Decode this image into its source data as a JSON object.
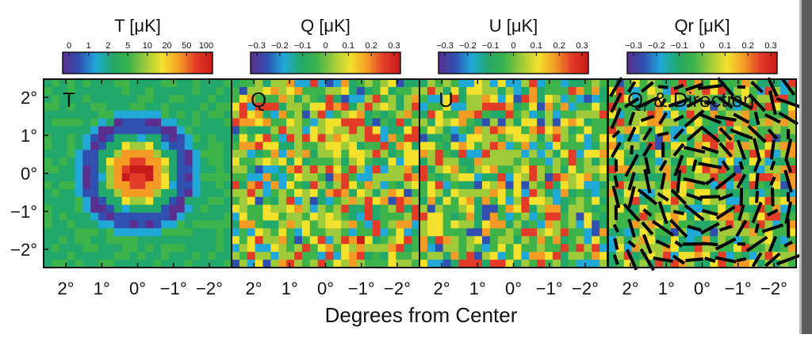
{
  "chart_data": {
    "type": "heatmap",
    "xlabel": "Degrees from Center",
    "x_ticks": [
      "2°",
      "1°",
      "0°",
      "−1°",
      "−2°"
    ],
    "y_ticks": [
      "2°",
      "1°",
      "0°",
      "−1°",
      "−2°"
    ],
    "colormap": [
      "#5a2f8f",
      "#3050b0",
      "#1fa8d8",
      "#22a86a",
      "#3db34a",
      "#9fcb3a",
      "#f4e12c",
      "#f39b25",
      "#e23b28",
      "#c81a1a"
    ],
    "panels": [
      {
        "name": "T",
        "colorbar_title": "T [μK]",
        "colorbar_ticks": [
          "0",
          "1",
          "2",
          "5",
          "10",
          "20",
          "50",
          "100"
        ],
        "label": "T",
        "label_sub": "",
        "label_suffix": "",
        "pattern": "rings",
        "seed": 7
      },
      {
        "name": "Q",
        "colorbar_title": "Q [μK]",
        "colorbar_ticks": [
          "−0.3",
          "−0.2",
          "−0.1",
          "0",
          "0.1",
          "0.2",
          "0.3"
        ],
        "label": "Q",
        "label_sub": "",
        "label_suffix": "",
        "pattern": "noise",
        "seed": 11
      },
      {
        "name": "U",
        "colorbar_title": "U [μK]",
        "colorbar_ticks": [
          "−0.3",
          "−0.2",
          "−0.1",
          "0",
          "0.1",
          "0.2",
          "0.3"
        ],
        "label": "U",
        "label_sub": "",
        "label_suffix": "",
        "pattern": "noise",
        "seed": 23
      },
      {
        "name": "Qr",
        "colorbar_title": "Qr [μK]",
        "colorbar_ticks": [
          "−0.3",
          "−0.2",
          "−0.1",
          "0",
          "0.1",
          "0.2",
          "0.3"
        ],
        "label": "Q",
        "label_sub": "r",
        "label_suffix": " & Direction",
        "pattern": "noise",
        "seed": 37,
        "show_direction": true
      }
    ]
  }
}
